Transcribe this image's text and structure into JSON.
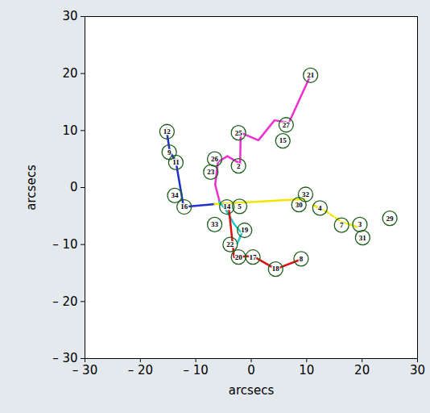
{
  "chart_data": {
    "type": "scatter",
    "x_label": "arcsecs",
    "y_label": "arcsecs",
    "xlim": [
      -30,
      30
    ],
    "ylim": [
      -30,
      30
    ],
    "xticks": [
      {
        "value": -30,
        "label": "– 30"
      },
      {
        "value": -20,
        "label": "– 20"
      },
      {
        "value": -10,
        "label": "– 10"
      },
      0,
      10,
      20,
      30
    ],
    "yticks": [
      {
        "value": -30,
        "label": "– 30"
      },
      {
        "value": -20,
        "label": "– 20"
      },
      {
        "value": -10,
        "label": "– 10"
      },
      0,
      10,
      20,
      30
    ],
    "grid": false,
    "series": [
      {
        "type": "scatter",
        "marker": "circle",
        "color": "#1d5e1d",
        "labels": [
          "21",
          "27",
          "15",
          "25",
          "2",
          "26",
          "23",
          "12",
          "9",
          "11",
          "34",
          "16",
          "14",
          "5",
          "33",
          "19",
          "22",
          "20",
          "17",
          "18",
          "8",
          "32",
          "30",
          "4",
          "7",
          "3",
          "31",
          "29"
        ],
        "x": [
          10.7,
          6.3,
          5.7,
          -2.3,
          -2.3,
          -6.6,
          -7.3,
          -15.2,
          -14.8,
          -13.6,
          -13.8,
          -12.1,
          -4.4,
          -2.1,
          -6.6,
          -1.2,
          -3.8,
          -2.3,
          0.3,
          4.4,
          9.0,
          9.8,
          8.6,
          12.4,
          16.3,
          19.6,
          20.1,
          25.0
        ],
        "y": [
          19.7,
          11.0,
          8.2,
          9.6,
          3.8,
          5.0,
          2.7,
          9.8,
          6.2,
          4.4,
          -1.4,
          -3.4,
          -3.4,
          -3.3,
          -6.5,
          -7.5,
          -10.0,
          -12.2,
          -12.2,
          -14.3,
          -12.5,
          -1.2,
          -3.0,
          -3.6,
          -6.6,
          -6.5,
          -8.8,
          -5.4
        ]
      },
      {
        "type": "line",
        "color": "#ee30d0",
        "line_style": "solid",
        "x": [
          10.7,
          6.8,
          4.2,
          1.3,
          -1.9,
          -2.0,
          -4.3,
          -6.0,
          -6.5,
          -5.6
        ],
        "y": [
          19.7,
          11.4,
          11.8,
          8.3,
          9.6,
          4.2,
          5.5,
          4.5,
          0.5,
          -2.9
        ]
      },
      {
        "type": "line",
        "color": "#1f2fd0",
        "line_style": "solid",
        "x": [
          -15.3,
          -14.7,
          -13.6,
          -12.2,
          -6.6
        ],
        "y": [
          10.3,
          6.3,
          4.6,
          -3.4,
          -2.9
        ]
      },
      {
        "type": "line",
        "color": "#f2e600",
        "line_style": "solid",
        "x": [
          -6.6,
          9.6
        ],
        "y": [
          -2.9,
          -2.0
        ]
      },
      {
        "type": "line",
        "color": "#f2e600",
        "line_style": "dashed",
        "x": [
          11.2,
          13.5,
          16.3,
          19.4
        ],
        "y": [
          -3.1,
          -4.2,
          -6.0,
          -7.0
        ]
      },
      {
        "type": "line",
        "color": "#20c8cc",
        "line_style": "solid",
        "x": [
          -5.8,
          -4.5,
          -3.1,
          -1.7,
          -2.5
        ],
        "y": [
          -2.5,
          -4.0,
          -6.4,
          -8.0,
          -9.8
        ]
      },
      {
        "type": "line",
        "color": "#dd1111",
        "line_style": "solid",
        "x": [
          -4.0,
          -3.1,
          0.3,
          4.4,
          9.0
        ],
        "y": [
          -4.0,
          -12.2,
          -12.0,
          -14.3,
          -12.6
        ]
      }
    ]
  }
}
